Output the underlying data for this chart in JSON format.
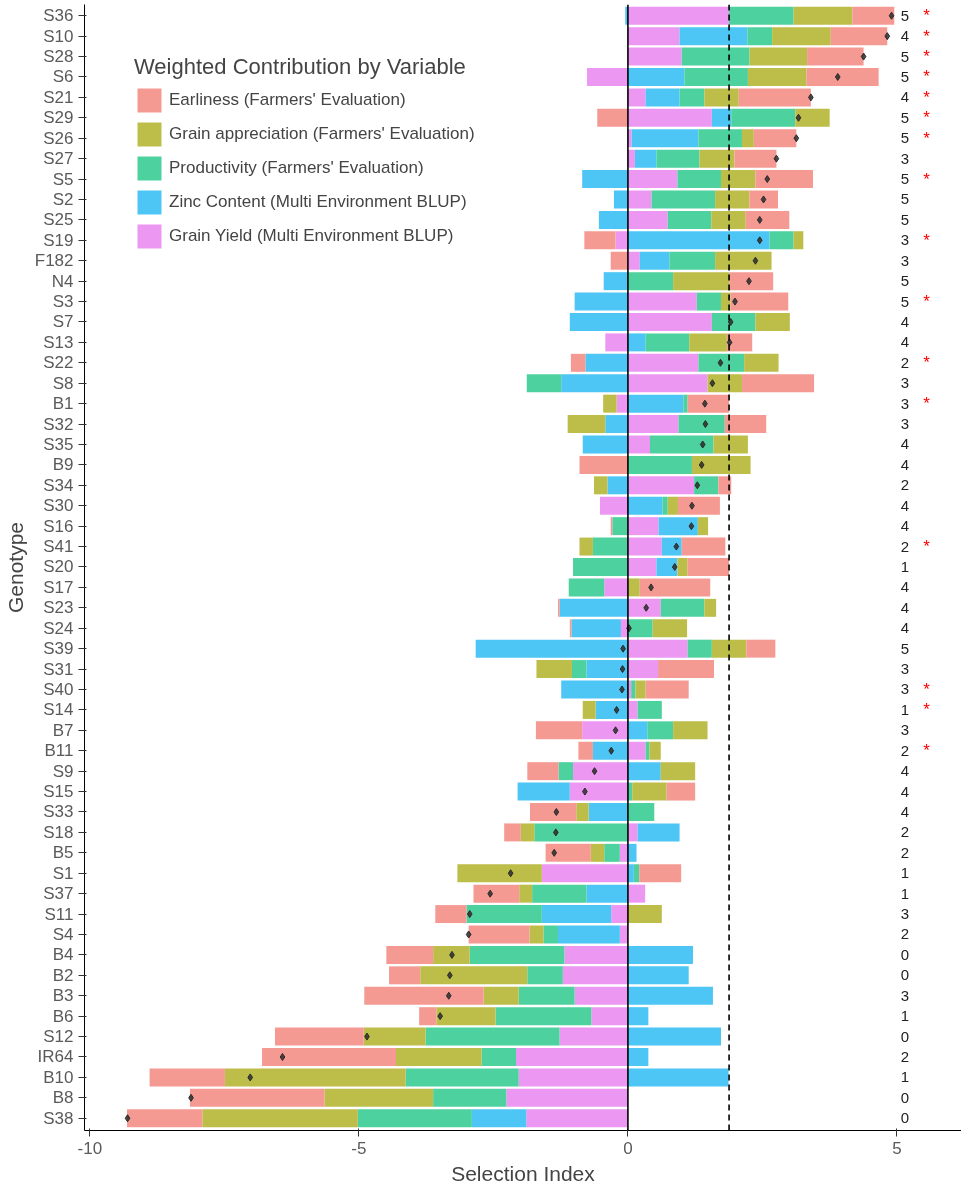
{
  "chart_data": {
    "type": "bar",
    "orientation": "horizontal",
    "stacked": true,
    "xlabel": "Selection Index",
    "ylabel": "Genotype",
    "legend_title": "Weighted Contribution by Variable",
    "legend": "top left",
    "grid": false,
    "xlim": [
      -10.1,
      6.2
    ],
    "xticks": [
      -10,
      -5,
      0,
      5
    ],
    "categories": [
      "S36",
      "S10",
      "S28",
      "S6",
      "S21",
      "S29",
      "S26",
      "S27",
      "S5",
      "S2",
      "S25",
      "S19",
      "F182",
      "N4",
      "S3",
      "S7",
      "S13",
      "S22",
      "S8",
      "B1",
      "S32",
      "S35",
      "B9",
      "S34",
      "S30",
      "S16",
      "S41",
      "S20",
      "S17",
      "S23",
      "S24",
      "S39",
      "S31",
      "S40",
      "S14",
      "B7",
      "B11",
      "S9",
      "S15",
      "S33",
      "S18",
      "B5",
      "S1",
      "S37",
      "S11",
      "S4",
      "B4",
      "B2",
      "B3",
      "B6",
      "S12",
      "IR64",
      "B10",
      "B8",
      "S38"
    ],
    "series": [
      {
        "name": "Grain Yield (Multi Environment BLUP)",
        "color": "#ec97f2",
        "values": [
          1.88,
          0.96,
          1.0,
          -0.76,
          0.33,
          1.56,
          0.07,
          0.13,
          0.92,
          0.44,
          0.74,
          -0.23,
          0.22,
          null,
          1.28,
          1.56,
          -0.42,
          1.31,
          1.48,
          -0.21,
          0.94,
          0.41,
          null,
          1.23,
          -0.52,
          0.57,
          0.63,
          0.53,
          -0.44,
          0.61,
          -0.13,
          1.11,
          0.56,
          0.06,
          0.18,
          -0.85,
          0.33,
          -1.02,
          -1.08,
          null,
          0.18,
          -0.15,
          -1.6,
          0.32,
          -0.31,
          -0.15,
          -1.18,
          -1.21,
          -0.99,
          -0.68,
          -1.27,
          -2.08,
          -2.03,
          -2.26,
          -1.89
        ]
      },
      {
        "name": "Zinc Content (Multi Environment BLUP)",
        "color": "#4dc6f5",
        "values": [
          -0.05,
          1.26,
          null,
          1.05,
          0.63,
          0.36,
          1.24,
          0.4,
          -0.85,
          -0.26,
          -0.54,
          2.63,
          0.55,
          -0.45,
          -0.99,
          -1.08,
          0.33,
          -0.79,
          -1.24,
          1.03,
          -0.42,
          -0.84,
          null,
          -0.38,
          0.64,
          0.73,
          0.37,
          0.39,
          null,
          -1.27,
          -0.92,
          -2.83,
          -0.77,
          -1.24,
          -0.6,
          0.36,
          -0.65,
          0.61,
          -0.97,
          -0.73,
          0.78,
          0.16,
          0.11,
          -0.77,
          -1.29,
          -1.15,
          1.21,
          1.13,
          1.58,
          0.38,
          1.73,
          0.38,
          1.87,
          null,
          -1.01
        ]
      },
      {
        "name": "Productivity (Farmers' Evaluation)",
        "color": "#4dd19f",
        "values": [
          1.2,
          0.46,
          1.26,
          1.18,
          0.46,
          1.19,
          0.81,
          0.8,
          0.81,
          1.18,
          0.81,
          0.45,
          0.85,
          0.84,
          0.45,
          0.81,
          0.81,
          0.85,
          -0.64,
          0.08,
          0.86,
          1.18,
          1.19,
          0.45,
          0.1,
          -0.29,
          -0.65,
          -1.02,
          -0.66,
          0.81,
          0.46,
          0.45,
          -0.27,
          0.08,
          0.45,
          0.48,
          0.07,
          -0.27,
          0.08,
          0.49,
          -1.74,
          -0.29,
          0.1,
          -1.01,
          -1.4,
          -0.27,
          -1.76,
          -0.66,
          -1.04,
          -1.78,
          -2.49,
          -0.64,
          -2.1,
          -1.36,
          -2.12
        ]
      },
      {
        "name": "Grain appreciation (Farmers' Evaluation)",
        "color": "#bdbd4a",
        "values": [
          1.09,
          1.09,
          1.07,
          1.09,
          0.64,
          0.64,
          0.22,
          0.65,
          0.64,
          0.64,
          0.64,
          0.18,
          1.05,
          1.05,
          0.18,
          0.64,
          0.7,
          0.64,
          0.64,
          -0.25,
          -0.7,
          0.64,
          1.09,
          -0.25,
          0.19,
          0.19,
          -0.25,
          0.19,
          0.22,
          0.22,
          0.64,
          0.64,
          -0.66,
          0.19,
          -0.24,
          0.64,
          0.21,
          0.64,
          0.64,
          -0.23,
          -0.25,
          -0.25,
          -1.57,
          -0.24,
          0.63,
          -0.26,
          -0.68,
          -1.99,
          -0.65,
          -1.1,
          -1.15,
          -1.59,
          -3.36,
          -2.02,
          -2.89
        ]
      },
      {
        "name": "Earliness (Farmers' Evaluation)",
        "color": "#f59a93",
        "values": [
          0.78,
          1.05,
          1.05,
          1.34,
          1.34,
          -0.57,
          0.79,
          0.78,
          1.07,
          0.53,
          0.81,
          -0.58,
          -0.32,
          0.81,
          1.07,
          null,
          0.47,
          -0.27,
          1.34,
          0.77,
          0.77,
          null,
          -0.9,
          0.24,
          0.78,
          -0.03,
          0.81,
          0.77,
          1.31,
          -0.03,
          -0.03,
          0.54,
          1.04,
          0.8,
          null,
          -0.86,
          -0.27,
          -0.58,
          0.53,
          -0.86,
          -0.31,
          -0.84,
          0.78,
          -0.85,
          -0.58,
          -1.13,
          -0.87,
          -0.58,
          -2.22,
          -0.32,
          -1.65,
          -2.49,
          -1.4,
          -2.5,
          -1.4
        ]
      },
      {
        "type": "scatter",
        "marker": "diamond",
        "color": "#2b2b2b",
        "values": [
          4.9,
          4.82,
          4.38,
          3.9,
          3.4,
          3.17,
          3.13,
          2.76,
          2.59,
          2.52,
          2.45,
          2.45,
          2.37,
          2.25,
          1.99,
          1.91,
          1.89,
          1.72,
          1.57,
          1.43,
          1.44,
          1.39,
          1.37,
          1.29,
          1.19,
          1.18,
          0.9,
          0.87,
          0.43,
          0.34,
          0.02,
          -0.09,
          -0.1,
          -0.11,
          -0.21,
          -0.23,
          -0.31,
          -0.62,
          -0.8,
          -1.33,
          -1.34,
          -1.37,
          -2.18,
          -2.56,
          -2.94,
          -2.96,
          -3.27,
          -3.31,
          -3.33,
          -3.49,
          -4.85,
          -6.42,
          -7.02,
          -8.12,
          -9.3
        ]
      }
    ],
    "ref_lines": [
      {
        "axis": "x",
        "value": 0,
        "color": "#000000",
        "line_style": "solid"
      },
      {
        "axis": "x",
        "value": 1.88,
        "color": "#000000",
        "line_style": "dashed"
      }
    ],
    "annotations": [
      "5 *",
      "4 *",
      "5 *",
      "5 *",
      "4 *",
      "5 *",
      "5 *",
      "3",
      "5 *",
      "5",
      "5",
      "3 *",
      "3",
      "5",
      "5 *",
      "4",
      "4",
      "2 *",
      "3",
      "3 *",
      "3",
      "4",
      "4",
      "2",
      "4",
      "4",
      "2 *",
      "1",
      "4",
      "4",
      "4",
      "5",
      "3",
      "3 *",
      "1 *",
      "3",
      "2 *",
      "4",
      "4",
      "4",
      "2",
      "2",
      "1",
      "1",
      "3",
      "2",
      "0",
      "0",
      "3",
      "1",
      "0",
      "2",
      "1",
      "0",
      "0"
    ]
  }
}
